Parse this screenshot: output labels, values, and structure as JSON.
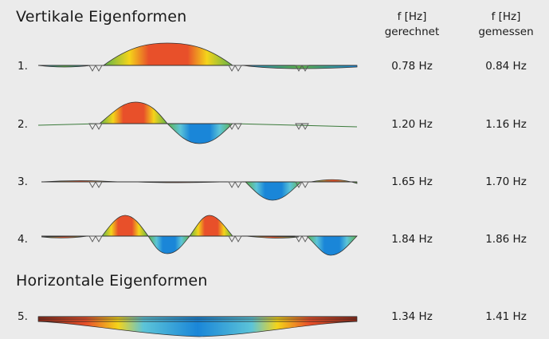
{
  "headings": {
    "vertical": "Vertikale Eigenformen",
    "horizontal": "Horizontale Eigenformen"
  },
  "columns": {
    "computed": {
      "line1": "f [Hz]",
      "line2": "gerechnet"
    },
    "measured": {
      "line1": "f [Hz]",
      "line2": "gemessen"
    }
  },
  "modes": [
    {
      "label": "1.",
      "computed": "0.78 Hz",
      "measured": "0.84 Hz"
    },
    {
      "label": "2.",
      "computed": "1.20 Hz",
      "measured": "1.16 Hz"
    },
    {
      "label": "3.",
      "computed": "1.65 Hz",
      "measured": "1.70 Hz"
    },
    {
      "label": "4.",
      "computed": "1.84 Hz",
      "measured": "1.86 Hz"
    },
    {
      "label": "5.",
      "computed": "1.34 Hz",
      "measured": "1.41 Hz"
    }
  ],
  "colors": {
    "peak_positive": "#e8502a",
    "mid_positive": "#f4d41a",
    "neutral": "#5fb34a",
    "peak_negative": "#1a86d8",
    "outline": "#333333",
    "background": "#ebebeb"
  }
}
